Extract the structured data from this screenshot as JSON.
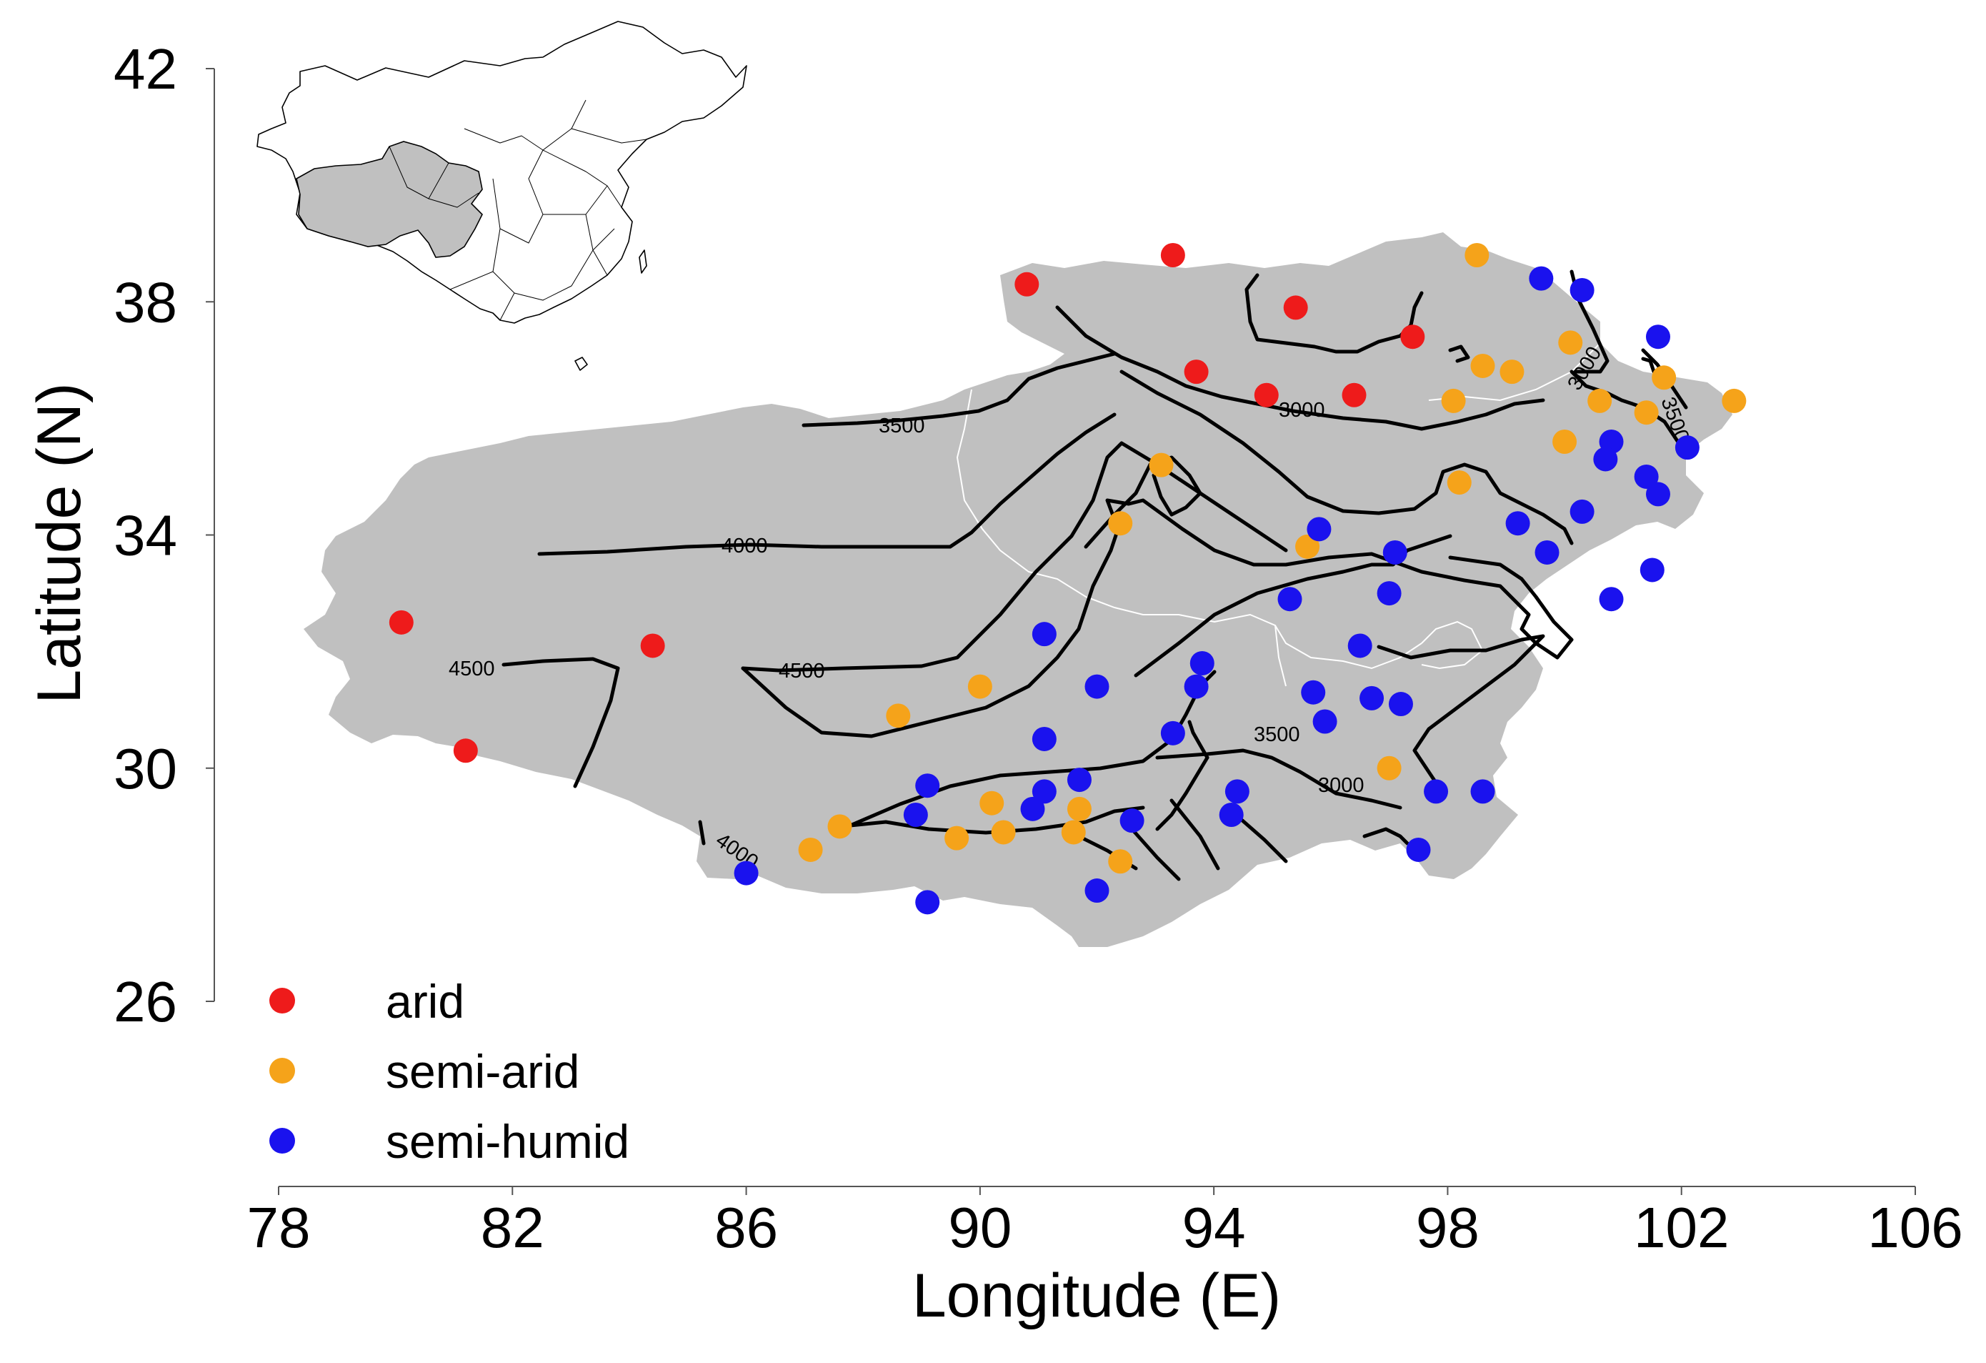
{
  "map": {
    "type": "scatter-map",
    "x_axis": {
      "label": "Longitude (E)",
      "range": [
        78,
        106
      ],
      "ticks": [
        78,
        82,
        86,
        90,
        94,
        98,
        102,
        106
      ]
    },
    "y_axis": {
      "label": "Latitude (N)",
      "range": [
        26,
        42
      ],
      "ticks": [
        26,
        30,
        34,
        38,
        42
      ]
    },
    "region_color": "#c0c0c0",
    "legend": {
      "placement": "bottom-left",
      "items": [
        {
          "key": "arid",
          "label": "arid",
          "color": "#ee1b1b"
        },
        {
          "key": "semi_arid",
          "label": "semi-arid",
          "color": "#f5a31a"
        },
        {
          "key": "semi_humid",
          "label": "semi-humid",
          "color": "#1a12ee"
        }
      ]
    },
    "contour_labels": [
      "3500",
      "4000",
      "4500",
      "4500",
      "4000",
      "3500",
      "3000",
      "3000",
      "3000",
      "3500"
    ],
    "inset": {
      "description_icon": "china-outline-inset-map"
    }
  },
  "chart_data": {
    "type": "scatter",
    "xlabel": "Longitude (E)",
    "ylabel": "Latitude (N)",
    "xlim": [
      78,
      106
    ],
    "ylim": [
      26,
      42
    ],
    "grid": false,
    "legend_placement": "bottom-left",
    "series": [
      {
        "name": "arid",
        "color": "#ee1b1b",
        "points": [
          [
            90.8,
            38.3
          ],
          [
            93.3,
            38.8
          ],
          [
            95.4,
            37.9
          ],
          [
            97.4,
            37.4
          ],
          [
            93.7,
            36.8
          ],
          [
            94.9,
            36.4
          ],
          [
            96.4,
            36.4
          ],
          [
            80.1,
            32.5
          ],
          [
            84.4,
            32.1
          ],
          [
            81.2,
            30.3
          ]
        ]
      },
      {
        "name": "semi-arid",
        "color": "#f5a31a",
        "points": [
          [
            98.5,
            38.8
          ],
          [
            100.1,
            37.3
          ],
          [
            98.6,
            36.9
          ],
          [
            99.1,
            36.8
          ],
          [
            98.1,
            36.3
          ],
          [
            101.7,
            36.7
          ],
          [
            100.6,
            36.3
          ],
          [
            101.4,
            36.1
          ],
          [
            102.9,
            36.3
          ],
          [
            100.0,
            35.6
          ],
          [
            98.2,
            34.9
          ],
          [
            93.1,
            35.2
          ],
          [
            92.4,
            34.2
          ],
          [
            95.6,
            33.8
          ],
          [
            88.6,
            30.9
          ],
          [
            90.0,
            31.4
          ],
          [
            97.0,
            30.0
          ],
          [
            87.1,
            28.6
          ],
          [
            87.6,
            29.0
          ],
          [
            89.6,
            28.8
          ],
          [
            90.4,
            28.9
          ],
          [
            90.2,
            29.4
          ],
          [
            91.7,
            29.3
          ],
          [
            91.6,
            28.9
          ],
          [
            92.4,
            28.4
          ]
        ]
      },
      {
        "name": "semi-humid",
        "color": "#1a12ee",
        "points": [
          [
            99.6,
            38.4
          ],
          [
            100.3,
            38.2
          ],
          [
            101.6,
            37.4
          ],
          [
            100.8,
            35.6
          ],
          [
            100.7,
            35.3
          ],
          [
            102.1,
            35.5
          ],
          [
            101.4,
            35.0
          ],
          [
            101.6,
            34.7
          ],
          [
            99.2,
            34.2
          ],
          [
            100.3,
            34.4
          ],
          [
            99.7,
            33.7
          ],
          [
            95.8,
            34.1
          ],
          [
            97.1,
            33.7
          ],
          [
            95.3,
            32.9
          ],
          [
            97.0,
            33.0
          ],
          [
            100.8,
            32.9
          ],
          [
            101.5,
            33.4
          ],
          [
            91.1,
            32.3
          ],
          [
            96.5,
            32.1
          ],
          [
            93.8,
            31.8
          ],
          [
            92.0,
            31.4
          ],
          [
            93.7,
            31.4
          ],
          [
            95.7,
            31.3
          ],
          [
            96.7,
            31.2
          ],
          [
            97.2,
            31.1
          ],
          [
            95.9,
            30.8
          ],
          [
            91.1,
            30.5
          ],
          [
            93.3,
            30.6
          ],
          [
            89.1,
            29.7
          ],
          [
            91.1,
            29.6
          ],
          [
            91.7,
            29.8
          ],
          [
            94.4,
            29.6
          ],
          [
            97.8,
            29.6
          ],
          [
            98.6,
            29.6
          ],
          [
            88.9,
            29.2
          ],
          [
            90.9,
            29.3
          ],
          [
            92.6,
            29.1
          ],
          [
            94.3,
            29.2
          ],
          [
            97.5,
            28.6
          ],
          [
            86.0,
            28.2
          ],
          [
            89.1,
            27.7
          ],
          [
            92.0,
            27.9
          ]
        ]
      }
    ]
  }
}
